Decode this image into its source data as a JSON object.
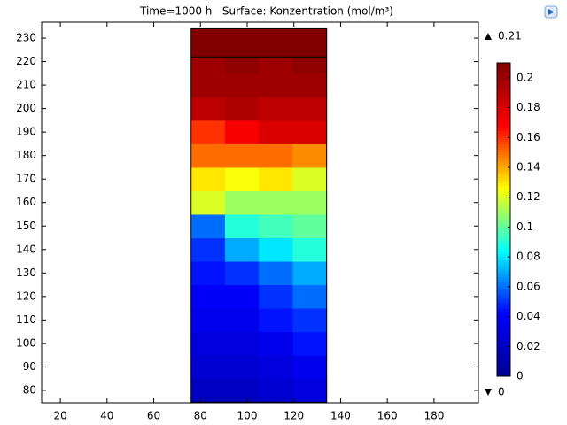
{
  "chart_data": {
    "type": "heatmap",
    "title": "Time=1000 h   Surface: Konzentration (mol/m³)",
    "xlim": [
      12,
      199
    ],
    "ylim": [
      74.7,
      236.8
    ],
    "xticks": [
      20,
      40,
      60,
      80,
      100,
      120,
      140,
      160,
      180
    ],
    "yticks": [
      80,
      90,
      100,
      110,
      120,
      130,
      140,
      150,
      160,
      170,
      180,
      190,
      200,
      210,
      220,
      230
    ],
    "x_edges": [
      76,
      90.5,
      105,
      119.5,
      134
    ],
    "y_edges": [
      75,
      85,
      95,
      105,
      115,
      125,
      135,
      145,
      155,
      165,
      175,
      185,
      195,
      205,
      215,
      222,
      234
    ],
    "values": [
      [
        0.02,
        0.02,
        0.025,
        0.03
      ],
      [
        0.025,
        0.025,
        0.03,
        0.035
      ],
      [
        0.03,
        0.03,
        0.035,
        0.045
      ],
      [
        0.035,
        0.035,
        0.045,
        0.05
      ],
      [
        0.04,
        0.04,
        0.05,
        0.06
      ],
      [
        0.045,
        0.05,
        0.06,
        0.07
      ],
      [
        0.05,
        0.07,
        0.08,
        0.09
      ],
      [
        0.06,
        0.09,
        0.095,
        0.1
      ],
      [
        0.12,
        0.11,
        0.11,
        0.11
      ],
      [
        0.13,
        0.125,
        0.13,
        0.12
      ],
      [
        0.15,
        0.15,
        0.15,
        0.145
      ],
      [
        0.16,
        0.17,
        0.18,
        0.18
      ],
      [
        0.19,
        0.195,
        0.19,
        0.19
      ],
      [
        0.2,
        0.2,
        0.2,
        0.2
      ],
      [
        0.2,
        0.205,
        0.2,
        0.205
      ],
      [
        0.21,
        0.21,
        0.21,
        0.21
      ]
    ],
    "clim": [
      0,
      0.21
    ],
    "cticks": [
      0,
      0.02,
      0.04,
      0.06,
      0.08,
      0.1,
      0.12,
      0.14,
      0.16,
      0.18,
      0.2
    ],
    "colormap": [
      "#00008f",
      "#0000ff",
      "#00ffff",
      "#ffff00",
      "#ff0000",
      "#800000"
    ]
  }
}
